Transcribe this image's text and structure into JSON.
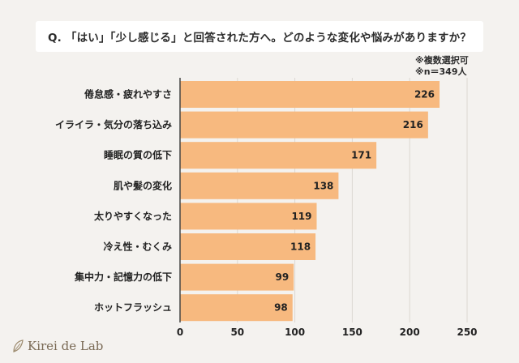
{
  "question": "Q. 「はい」「少し感じる」と回答された方へ。どのような変化や悩みがありますか？",
  "notes": [
    "※複数選択可",
    "※n＝349人"
  ],
  "logo": "Kirei de Lab",
  "colors": {
    "bar": "#f7b97f",
    "grid": "#dcd8d2",
    "background": "#f4f2ef"
  },
  "chart_data": {
    "type": "bar",
    "orientation": "horizontal",
    "categories": [
      "倦怠感・疲れやすさ",
      "イライラ・気分の落ち込み",
      "睡眠の質の低下",
      "肌や髪の変化",
      "太りやすくなった",
      "冷え性・むくみ",
      "集中力・記憶力の低下",
      "ホットフラッシュ"
    ],
    "values": [
      226,
      216,
      171,
      138,
      119,
      118,
      99,
      98
    ],
    "xlim": [
      0,
      250
    ],
    "xticks": [
      0,
      50,
      100,
      150,
      200,
      250
    ],
    "grid": true
  }
}
